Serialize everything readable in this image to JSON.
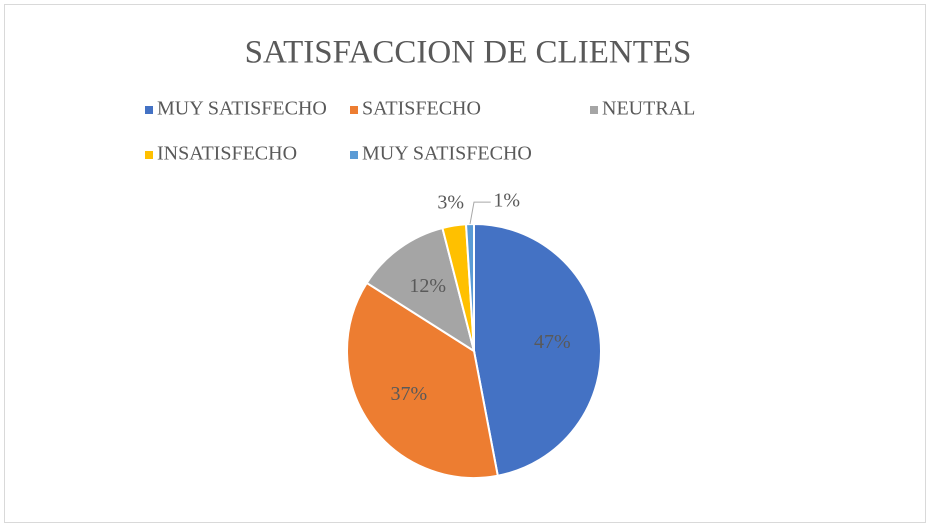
{
  "chart_data": {
    "type": "pie",
    "title": "SATISFACCION DE CLIENTES",
    "categories": [
      "MUY SATISFECHO",
      "SATISFECHO",
      "NEUTRAL",
      "INSATISFECHO",
      "MUY SATISFECHO"
    ],
    "values": [
      47,
      37,
      12,
      3,
      1
    ],
    "value_labels": [
      "47%",
      "37%",
      "12%",
      "3%",
      "1%"
    ],
    "colors": [
      "#4472c4",
      "#ed7d31",
      "#a5a5a5",
      "#ffc000",
      "#5b9bd5"
    ],
    "legend": "top"
  }
}
